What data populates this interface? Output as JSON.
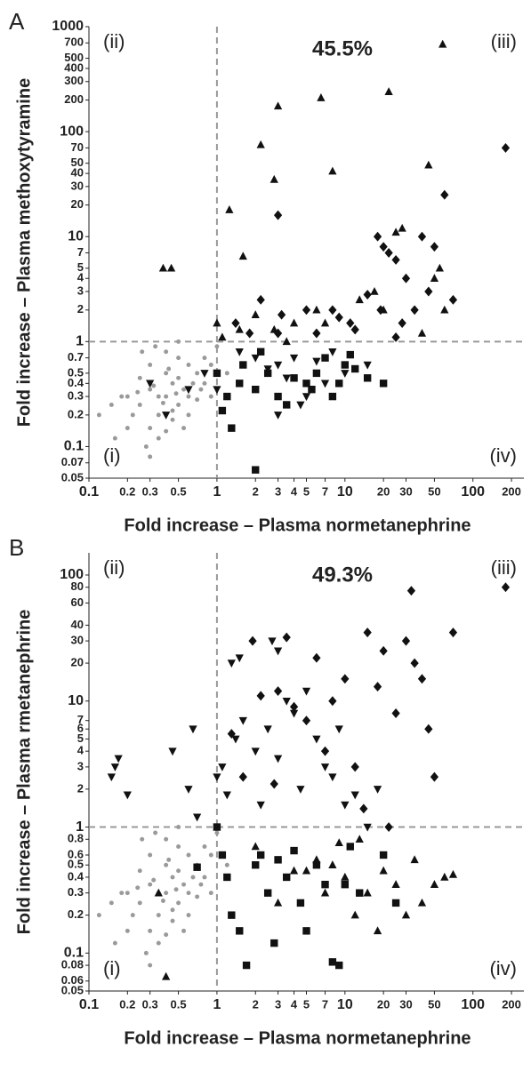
{
  "chart_data": [
    {
      "type": "scatter",
      "panel": "A",
      "percent": "45.5%",
      "quadrants": [
        "(i)",
        "(ii)",
        "(iii)",
        "(iv)"
      ],
      "xlabel": "Fold increase – Plasma normetanephrine",
      "ylabel": "Fold increase – Plasma methoxytyramine",
      "xscale": "log",
      "yscale": "log",
      "xlim": [
        0.1,
        250
      ],
      "ylim": [
        0.05,
        1000
      ],
      "xticks": [
        0.1,
        0.2,
        0.3,
        0.5,
        1,
        2,
        3,
        4,
        5,
        7,
        10,
        20,
        30,
        50,
        100,
        200
      ],
      "yticks": [
        1000,
        700,
        500,
        400,
        300,
        200,
        100,
        70,
        50,
        40,
        30,
        20,
        10,
        7,
        5,
        4,
        3,
        2,
        1,
        0.7,
        0.5,
        0.4,
        0.3,
        0.2,
        0.1,
        0.07,
        0.05
      ],
      "x_threshold": 1,
      "y_threshold": 1,
      "series": [
        {
          "marker": "circle",
          "color": "#9a9a9a",
          "x": [
            0.2,
            0.25,
            0.3,
            0.35,
            0.4,
            0.45,
            0.5,
            0.55,
            0.6,
            0.7,
            0.8,
            0.9,
            0.3,
            0.35,
            0.4,
            0.45,
            0.5,
            0.25,
            0.22,
            0.18,
            0.15,
            0.3,
            0.4,
            0.5,
            0.6,
            0.7,
            0.8,
            1.0,
            1.2,
            0.35,
            0.45,
            0.28,
            0.32,
            0.38,
            0.42,
            0.48,
            0.55,
            0.65,
            0.2,
            0.26,
            0.33,
            0.6,
            0.75,
            0.9,
            0.5,
            0.4,
            0.3,
            0.24,
            0.12,
            0.16
          ],
          "y": [
            0.3,
            0.25,
            0.35,
            0.2,
            0.3,
            0.4,
            0.25,
            0.35,
            0.3,
            0.5,
            0.4,
            0.6,
            0.15,
            0.12,
            0.5,
            0.18,
            0.7,
            0.45,
            0.2,
            0.3,
            0.25,
            0.6,
            0.8,
            0.45,
            0.2,
            0.28,
            0.7,
            0.9,
            0.5,
            0.3,
            0.22,
            0.1,
            0.38,
            0.26,
            0.55,
            0.32,
            0.15,
            0.4,
            0.15,
            0.8,
            0.9,
            0.6,
            0.35,
            0.3,
            1.0,
            0.14,
            0.08,
            0.33,
            0.2,
            0.12
          ]
        },
        {
          "marker": "triangle-up",
          "color": "#111111",
          "x": [
            0.38,
            0.44,
            1.25,
            1.6,
            2.2,
            2.8,
            3,
            6.5,
            8,
            22,
            45,
            58,
            1,
            1.5,
            2.8,
            4,
            6,
            7,
            13,
            17,
            25,
            28,
            55,
            60,
            40,
            20,
            1.1,
            2,
            50,
            3.5
          ],
          "y": [
            5,
            5,
            18,
            6.5,
            75,
            35,
            175,
            210,
            42,
            240,
            48,
            680,
            1.5,
            1.3,
            1.3,
            1.5,
            2,
            1.5,
            2.5,
            3,
            11,
            12,
            5,
            2,
            1.2,
            2,
            1.1,
            1.8,
            4,
            1
          ]
        },
        {
          "marker": "diamond",
          "color": "#111111",
          "x": [
            3,
            180,
            60,
            1.4,
            2.2,
            3.2,
            5,
            8,
            11,
            15,
            18,
            20,
            22,
            25,
            40,
            50,
            30,
            35,
            45,
            70,
            12,
            25,
            3,
            6,
            9,
            19,
            1.8,
            28
          ],
          "y": [
            16,
            70,
            25,
            1.5,
            2.5,
            1.8,
            2,
            2,
            1.5,
            2.8,
            10,
            8,
            7,
            6,
            10,
            8,
            4,
            2,
            3,
            2.5,
            1.3,
            1.1,
            1.2,
            1.2,
            1.7,
            2,
            1.2,
            1.5
          ]
        },
        {
          "marker": "square",
          "color": "#111111",
          "x": [
            1,
            1.2,
            1.1,
            1.3,
            1.5,
            2,
            2,
            2.5,
            3,
            3.5,
            4,
            5,
            5.5,
            7,
            8,
            10,
            12,
            15,
            20,
            1.6,
            2.2,
            6,
            9,
            11
          ],
          "y": [
            0.5,
            0.3,
            0.22,
            0.15,
            0.4,
            0.06,
            0.35,
            0.5,
            0.3,
            0.25,
            0.45,
            0.4,
            0.35,
            0.7,
            0.3,
            0.6,
            0.55,
            0.45,
            0.4,
            0.6,
            0.8,
            0.5,
            0.4,
            0.75
          ]
        },
        {
          "marker": "triangle-down",
          "color": "#111111",
          "x": [
            0.3,
            0.4,
            0.6,
            0.8,
            1,
            1.5,
            2,
            2.5,
            3,
            3.5,
            4,
            5,
            6,
            7,
            8,
            10,
            15,
            4.5,
            3
          ],
          "y": [
            0.4,
            0.2,
            0.35,
            0.5,
            0.35,
            0.8,
            0.7,
            0.55,
            0.6,
            0.45,
            0.7,
            0.3,
            0.65,
            0.4,
            0.8,
            0.5,
            0.6,
            0.25,
            0.2
          ]
        }
      ]
    },
    {
      "type": "scatter",
      "panel": "B",
      "percent": "49.3%",
      "quadrants": [
        "(i)",
        "(ii)",
        "(iii)",
        "(iv)"
      ],
      "xlabel": "Fold increase – Plasma normetanephrine",
      "ylabel": "Fold increase – Plasma rmetanephrine",
      "xscale": "log",
      "yscale": "log",
      "xlim": [
        0.1,
        250
      ],
      "ylim": [
        0.05,
        150
      ],
      "xticks": [
        0.1,
        0.2,
        0.3,
        0.5,
        1,
        2,
        3,
        4,
        5,
        7,
        10,
        20,
        30,
        50,
        100,
        200
      ],
      "yticks": [
        100,
        80,
        60,
        40,
        30,
        20,
        10,
        7,
        6,
        5,
        4,
        3,
        2,
        1,
        0.8,
        0.6,
        0.5,
        0.4,
        0.3,
        0.2,
        0.1,
        0.08,
        0.06,
        0.05
      ],
      "x_threshold": 1,
      "y_threshold": 1,
      "series": [
        {
          "marker": "circle",
          "color": "#9a9a9a",
          "x": [
            0.2,
            0.25,
            0.3,
            0.35,
            0.4,
            0.45,
            0.5,
            0.55,
            0.6,
            0.7,
            0.8,
            0.9,
            0.3,
            0.35,
            0.4,
            0.45,
            0.5,
            0.25,
            0.22,
            0.18,
            0.15,
            0.3,
            0.4,
            0.5,
            0.6,
            0.7,
            0.8,
            1.0,
            1.2,
            0.35,
            0.45,
            0.28,
            0.32,
            0.38,
            0.42,
            0.48,
            0.55,
            0.65,
            0.2,
            0.26,
            0.33,
            0.6,
            0.75,
            0.9,
            0.5,
            0.4,
            0.3,
            0.24,
            0.12,
            0.16
          ],
          "y": [
            0.3,
            0.25,
            0.35,
            0.2,
            0.3,
            0.4,
            0.25,
            0.35,
            0.3,
            0.5,
            0.4,
            0.6,
            0.15,
            0.12,
            0.5,
            0.18,
            0.7,
            0.45,
            0.2,
            0.3,
            0.25,
            0.6,
            0.8,
            0.45,
            0.2,
            0.28,
            0.7,
            0.9,
            0.5,
            0.3,
            0.22,
            0.1,
            0.38,
            0.26,
            0.55,
            0.32,
            0.15,
            0.4,
            0.15,
            0.8,
            0.9,
            0.6,
            0.35,
            0.3,
            1.0,
            0.14,
            0.08,
            0.33,
            0.2,
            0.12
          ]
        },
        {
          "marker": "triangle-down",
          "color": "#111111",
          "x": [
            0.15,
            0.17,
            0.16,
            0.2,
            0.45,
            0.6,
            0.65,
            0.7,
            1,
            1.1,
            1.2,
            1.3,
            1.5,
            1.4,
            1.6,
            2,
            2.5,
            2.7,
            3,
            3.5,
            4,
            4.5,
            5,
            6,
            7,
            8,
            10,
            12,
            15,
            18,
            2.2,
            3,
            9
          ],
          "y": [
            2.5,
            3.5,
            3,
            1.8,
            4,
            2,
            6,
            1.2,
            2.5,
            3,
            1.8,
            20,
            22,
            5,
            7,
            4,
            6,
            30,
            25,
            10,
            8,
            2,
            12,
            5,
            3,
            2.5,
            1.5,
            1.8,
            1,
            2,
            1.5,
            3.5,
            6
          ]
        },
        {
          "marker": "diamond",
          "color": "#111111",
          "x": [
            1.3,
            1.6,
            1.9,
            2.2,
            3,
            3.5,
            4,
            5,
            6,
            7,
            8,
            10,
            12,
            15,
            18,
            20,
            25,
            30,
            35,
            40,
            45,
            50,
            70,
            180,
            33,
            22,
            2.8,
            14
          ],
          "y": [
            5.5,
            2.5,
            30,
            11,
            12,
            32,
            9,
            7,
            22,
            4,
            10,
            15,
            3,
            35,
            13,
            25,
            8,
            30,
            20,
            15,
            6,
            2.5,
            35,
            80,
            75,
            1,
            2.2,
            1.4
          ]
        },
        {
          "marker": "square",
          "color": "#111111",
          "x": [
            1,
            1.1,
            1.2,
            1.3,
            1.5,
            1.7,
            2,
            2.2,
            2.5,
            2.8,
            3,
            3.5,
            4,
            4.5,
            5,
            6,
            7,
            8,
            9,
            10,
            11,
            13,
            20,
            25,
            0.7
          ],
          "y": [
            1,
            0.6,
            0.4,
            0.2,
            0.15,
            0.08,
            0.5,
            0.6,
            0.3,
            0.12,
            0.55,
            0.4,
            0.65,
            0.25,
            0.15,
            0.5,
            0.35,
            0.085,
            0.08,
            0.35,
            0.7,
            0.3,
            0.6,
            0.25,
            0.48
          ]
        },
        {
          "marker": "triangle-up",
          "color": "#111111",
          "x": [
            0.35,
            0.4,
            2,
            3,
            4,
            5,
            6,
            7,
            9,
            10,
            12,
            15,
            18,
            20,
            25,
            30,
            35,
            40,
            50,
            60,
            70,
            13,
            8
          ],
          "y": [
            0.3,
            0.065,
            0.7,
            0.25,
            0.45,
            0.45,
            0.55,
            0.3,
            0.75,
            0.4,
            0.2,
            0.3,
            0.15,
            0.45,
            0.35,
            0.2,
            0.55,
            0.25,
            0.35,
            0.4,
            0.42,
            0.8,
            0.5
          ]
        }
      ]
    }
  ]
}
